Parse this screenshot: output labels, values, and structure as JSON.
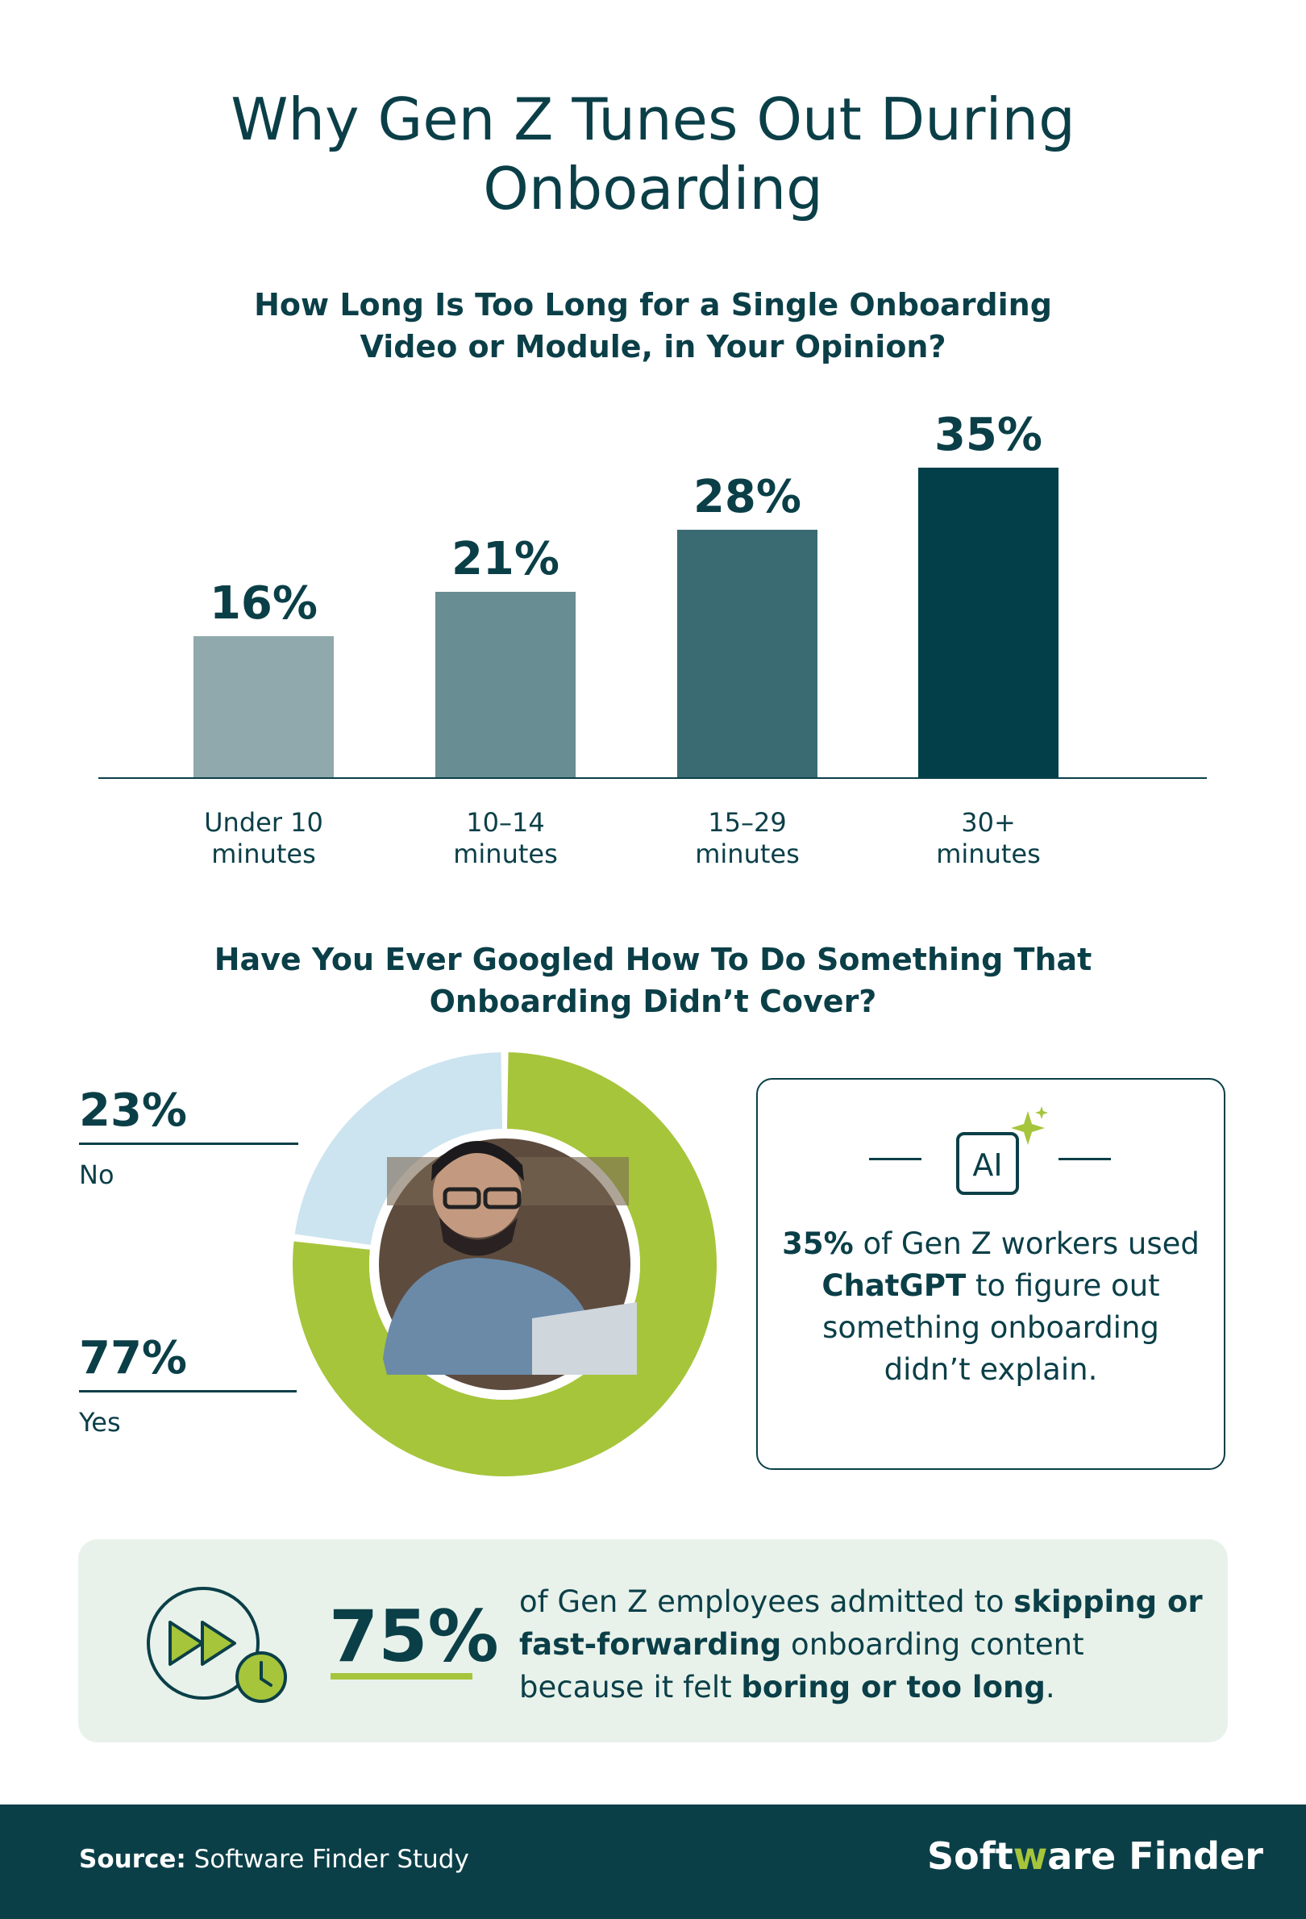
{
  "title": "Why Gen Z Tunes Out During\nOnboarding",
  "q1": "How Long Is Too Long for a Single Onboarding\nVideo or Module, in Your Opinion?",
  "q2": "Have You Ever Googled How To Do Something That\nOnboarding Didn’t Cover?",
  "chart_data": [
    {
      "type": "bar",
      "title": "How Long Is Too Long for a Single Onboarding Video or Module, in Your Opinion?",
      "categories": [
        "Under 10 minutes",
        "10–14 minutes",
        "15–29 minutes",
        "30+ minutes"
      ],
      "category_lines": [
        [
          "Under 10",
          "minutes"
        ],
        [
          "10–14",
          "minutes"
        ],
        [
          "15–29",
          "minutes"
        ],
        [
          "30+",
          "minutes"
        ]
      ],
      "values": [
        16,
        21,
        28,
        35
      ],
      "value_labels": [
        "16%",
        "21%",
        "28%",
        "35%"
      ],
      "colors": [
        "#8fa9ad",
        "#688d92",
        "#3a6b72",
        "#033f48"
      ],
      "ylim": [
        0,
        35
      ],
      "grid": false,
      "legend": "none"
    },
    {
      "type": "pie",
      "title": "Have You Ever Googled How To Do Something That Onboarding Didn’t Cover?",
      "categories": [
        "No",
        "Yes"
      ],
      "values": [
        23,
        77
      ],
      "value_labels": [
        "23%",
        "77%"
      ],
      "colors": [
        "#cce4ef",
        "#a6c53b"
      ],
      "donut": true
    }
  ],
  "card": {
    "icon_text": "AI",
    "pct": "35%",
    "t1": " of Gen Z workers used ",
    "bold": "ChatGPT",
    "t2": " to figure out something onboarding didn’t explain."
  },
  "banner": {
    "pct": "75%",
    "t1": "of Gen Z employees admitted to ",
    "b1": "skipping or fast-forwarding",
    "t2": " onboarding content because it felt ",
    "b2": "boring or too long",
    "t3": "."
  },
  "footer": {
    "source_label": "Source:",
    "source_text": " Software Finder Study",
    "brand_a": "Soft",
    "brand_w": "w",
    "brand_b": "are Finder"
  },
  "colors": {
    "dark_teal": "#0b3f48",
    "lime": "#a6c53b",
    "light_blue": "#cce4ef",
    "banner_bg": "#e8f2ea"
  }
}
